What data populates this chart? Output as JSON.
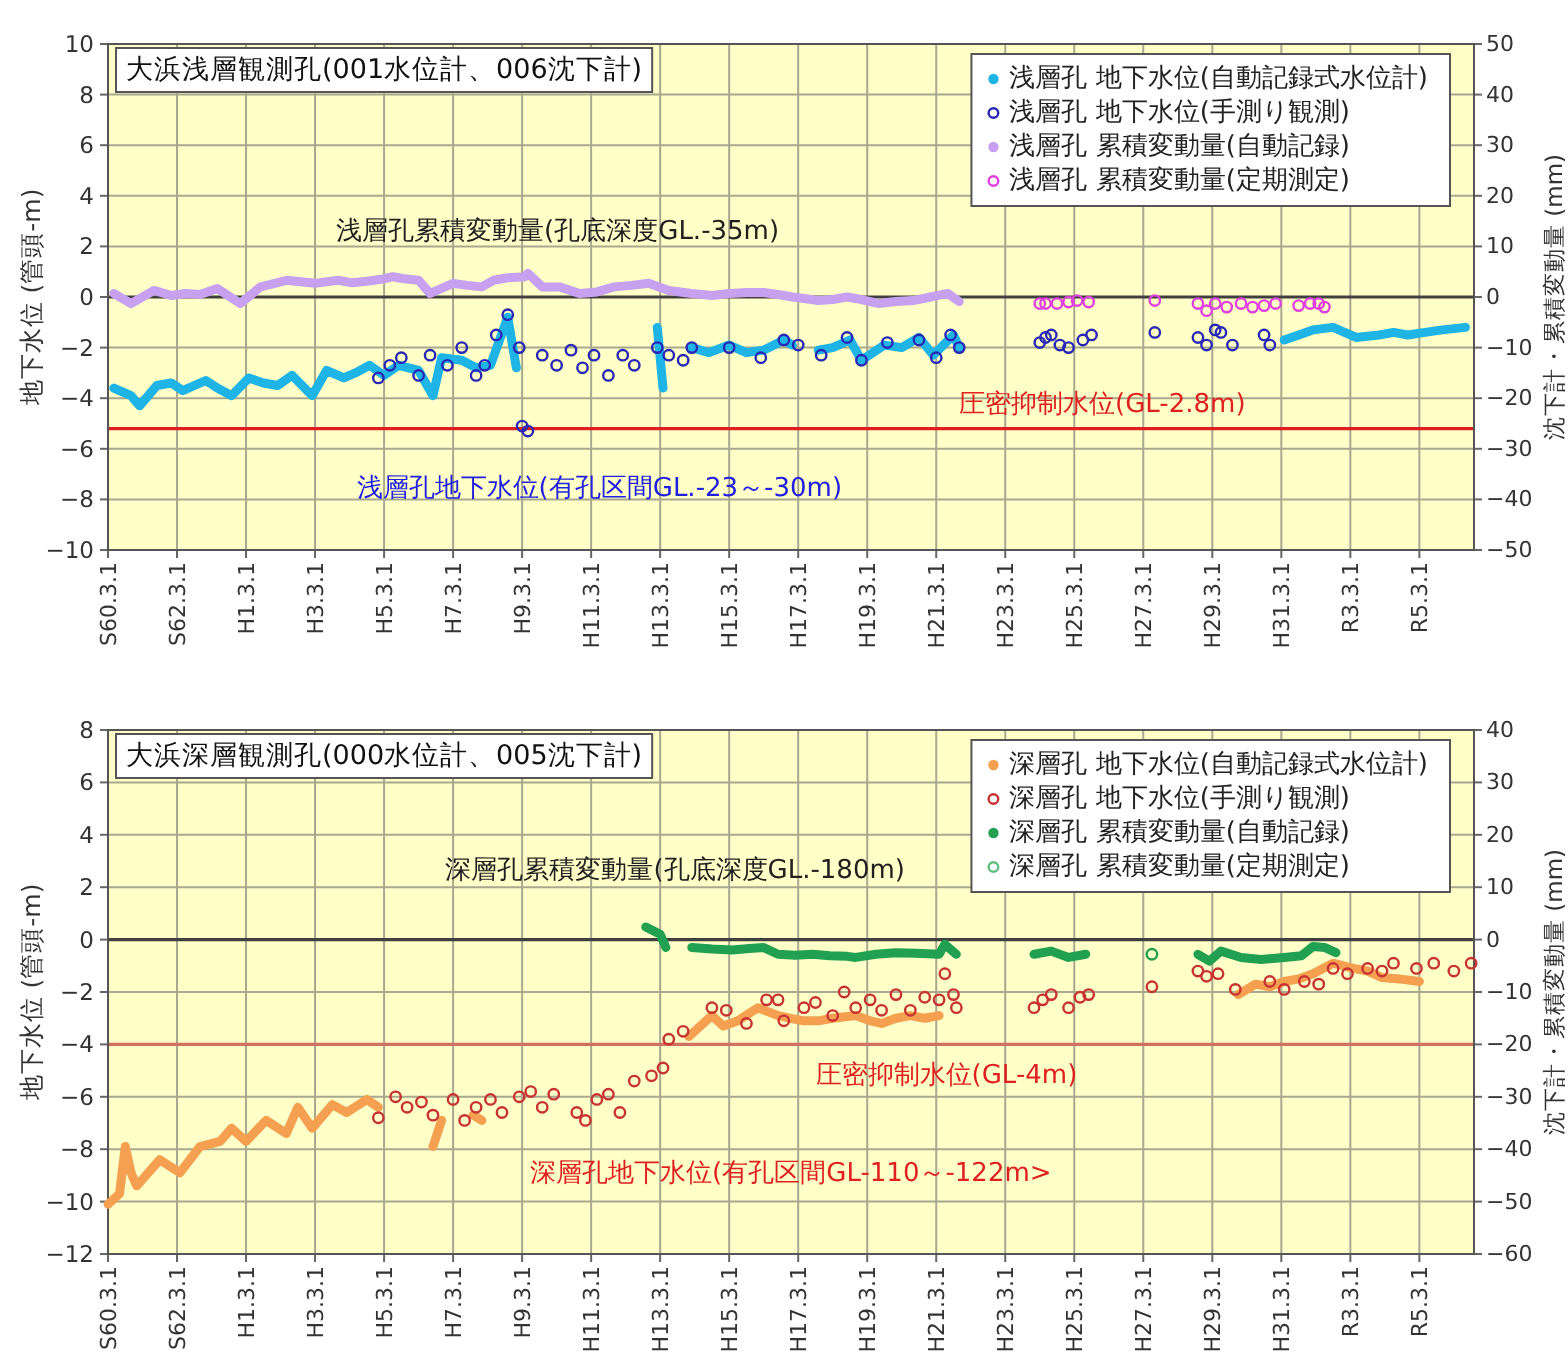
{
  "chart_data": [
    {
      "type": "scatter",
      "title": "大浜浅層観測孔(001水位計、006沈下計)",
      "ylabel": "地下水位 (管頭-m)",
      "y2label": "沈下計・累積変動量 (mm)",
      "xlim": [
        "1985-03-01",
        "2024-10-01"
      ],
      "xticks": [
        {
          "value": "1985-03-01",
          "label": "S60.3.1"
        },
        {
          "value": "1987-03-01",
          "label": "S62.3.1"
        },
        {
          "value": "1989-03-01",
          "label": "H1.3.1"
        },
        {
          "value": "1991-03-01",
          "label": "H3.3.1"
        },
        {
          "value": "1993-03-01",
          "label": "H5.3.1"
        },
        {
          "value": "1995-03-01",
          "label": "H7.3.1"
        },
        {
          "value": "1997-03-01",
          "label": "H9.3.1"
        },
        {
          "value": "1999-03-01",
          "label": "H11.3.1"
        },
        {
          "value": "2001-03-01",
          "label": "H13.3.1"
        },
        {
          "value": "2003-03-01",
          "label": "H15.3.1"
        },
        {
          "value": "2005-03-01",
          "label": "H17.3.1"
        },
        {
          "value": "2007-03-01",
          "label": "H19.3.1"
        },
        {
          "value": "2009-03-01",
          "label": "H21.3.1"
        },
        {
          "value": "2011-03-01",
          "label": "H23.3.1"
        },
        {
          "value": "2013-03-01",
          "label": "H25.3.1"
        },
        {
          "value": "2015-03-01",
          "label": "H27.3.1"
        },
        {
          "value": "2017-03-01",
          "label": "H29.3.1"
        },
        {
          "value": "2019-03-01",
          "label": "H31.3.1"
        },
        {
          "value": "2021-03-01",
          "label": "R3.3.1"
        },
        {
          "value": "2023-03-01",
          "label": "R5.3.1"
        }
      ],
      "ylim": [
        -10,
        10
      ],
      "yticks": [
        -10,
        -8,
        -6,
        -4,
        -2,
        0,
        2,
        4,
        6,
        8,
        10
      ],
      "y2lim": [
        -50,
        50
      ],
      "y2ticks": [
        -50,
        -40,
        -30,
        -20,
        -10,
        0,
        10,
        20,
        30,
        40,
        50
      ],
      "grid": true,
      "legend": "top right",
      "ref_lines": [
        {
          "axis": "y",
          "value": 0,
          "color": "#404040"
        },
        {
          "axis": "y",
          "value": -5.2,
          "color": "#e02020",
          "label": "圧密抑制水位(GL-2.8m)"
        }
      ],
      "annotations": [
        "浅層孔累積変動量(孔底深度GL.-35m)",
        "浅層孔地下水位(有孔区間GL.-23～-30m)"
      ],
      "series": [
        {
          "name": "浅層孔 地下水位(自動記録式水位計)",
          "type": "line",
          "marker": "none",
          "axis": "y",
          "color": "#1eb4e6",
          "x": [
            "1985-05",
            "1985-11",
            "1986-02",
            "1986-08",
            "1987-01",
            "1987-05",
            "1988-01",
            "1988-05",
            "1988-10",
            "1989-04",
            "1989-09",
            "1990-02",
            "1990-07",
            "1991-02",
            "1991-07",
            "1992-01",
            "1992-05",
            "1992-10",
            "1993-03",
            "1993-08",
            "1994-03",
            "1994-08",
            "1994-11",
            "1995-06",
            "1995-11",
            "1996-04",
            "1996-10",
            "1997-01",
            "2001-02",
            "2001-04",
            "2002-02",
            "2002-08",
            "2003-03",
            "2003-09",
            "2004-03",
            "2004-10",
            "2005-01",
            "2005-10",
            "2006-03",
            "2006-09",
            "2007-01",
            "2007-09",
            "2008-03",
            "2008-09",
            "2009-02",
            "2009-09",
            "2009-11",
            "2019-04",
            "2019-09",
            "2020-02",
            "2020-09",
            "2021-05",
            "2022-01",
            "2022-06",
            "2022-11",
            "2023-05",
            "2023-11",
            "2024-07"
          ],
          "values": [
            -3.6,
            -3.9,
            -4.3,
            -3.5,
            -3.4,
            -3.7,
            -3.3,
            -3.6,
            -3.9,
            -3.2,
            -3.4,
            -3.5,
            -3.1,
            -3.9,
            -2.9,
            -3.2,
            -3.0,
            -2.7,
            -3.1,
            -2.7,
            -2.9,
            -3.9,
            -2.4,
            -2.5,
            -2.8,
            -2.7,
            -0.8,
            -2.8,
            -1.2,
            -3.6,
            -2.0,
            -2.2,
            -1.9,
            -2.2,
            -2.1,
            -1.7,
            -1.9,
            -2.1,
            -2.0,
            -1.7,
            -2.5,
            -1.9,
            -2.0,
            -1.6,
            -2.3,
            -1.5,
            -2.0,
            -1.7,
            -1.5,
            -1.3,
            -1.2,
            -1.6,
            -1.5,
            -1.4,
            -1.5,
            -1.4,
            -1.3,
            -1.2
          ]
        },
        {
          "name": "浅層孔 地下水位(手測り観測)",
          "type": "scatter",
          "marker": "circle",
          "axis": "y",
          "color": "#2828b4",
          "x": [
            "1993-01",
            "1993-05",
            "1993-09",
            "1994-03",
            "1994-07",
            "1995-01",
            "1995-06",
            "1995-11",
            "1996-02",
            "1996-06",
            "1996-10",
            "1997-02",
            "1997-03",
            "1997-05",
            "1997-10",
            "1998-03",
            "1998-08",
            "1998-12",
            "1999-04",
            "1999-09",
            "2000-02",
            "2000-06",
            "2001-02",
            "2001-06",
            "2001-11",
            "2002-02",
            "2003-03",
            "2004-02",
            "2004-10",
            "2005-03",
            "2005-11",
            "2006-08",
            "2007-01",
            "2007-10",
            "2008-09",
            "2009-03",
            "2009-08",
            "2009-11",
            "2012-03",
            "2012-05",
            "2012-07",
            "2012-10",
            "2013-01",
            "2013-06",
            "2013-09",
            "2015-07",
            "2016-10",
            "2017-01",
            "2017-04",
            "2017-06",
            "2017-10",
            "2018-09",
            "2018-11"
          ],
          "values": [
            -3.2,
            -2.7,
            -2.4,
            -3.1,
            -2.3,
            -2.7,
            -2.0,
            -3.1,
            -2.7,
            -1.5,
            -0.7,
            -2.0,
            -5.1,
            -5.3,
            -2.3,
            -2.7,
            -2.1,
            -2.8,
            -2.3,
            -3.1,
            -2.3,
            -2.7,
            -2.0,
            -2.3,
            -2.5,
            -2.0,
            -2.0,
            -2.4,
            -1.7,
            -1.9,
            -2.3,
            -1.6,
            -2.5,
            -1.8,
            -1.7,
            -2.4,
            -1.5,
            -2.0,
            -1.8,
            -1.6,
            -1.5,
            -1.9,
            -2.0,
            -1.7,
            -1.5,
            -1.4,
            -1.6,
            -1.9,
            -1.3,
            -1.4,
            -1.9,
            -1.5,
            -1.9
          ]
        },
        {
          "name": "浅層孔 累積変動量(自動記録)",
          "type": "line",
          "marker": "none",
          "axis": "y2",
          "color": "#c8a0f0",
          "x": [
            "1985-05",
            "1985-11",
            "1986-07",
            "1987-01",
            "1987-06",
            "1987-11",
            "1988-05",
            "1989-01",
            "1989-08",
            "1990-01",
            "1990-05",
            "1990-10",
            "1991-03",
            "1991-11",
            "1992-04",
            "1992-09",
            "1993-02",
            "1993-06",
            "1993-10",
            "1994-03",
            "1994-07",
            "1995-03",
            "1995-08",
            "1996-01",
            "1996-05",
            "1996-10",
            "1997-04",
            "1997-05",
            "1997-10",
            "1998-04",
            "1998-11",
            "1999-05",
            "1999-11",
            "2000-05",
            "2000-11",
            "2001-06",
            "2002-02",
            "2002-09",
            "2003-03",
            "2003-09",
            "2004-03",
            "2004-08",
            "2005-01",
            "2005-05",
            "2005-10",
            "2006-03",
            "2006-08",
            "2007-01",
            "2007-07",
            "2008-01",
            "2008-07",
            "2009-01",
            "2009-07",
            "2009-11"
          ],
          "values": [
            0.7,
            -1.3,
            1.3,
            0.3,
            0.7,
            0.5,
            1.7,
            -1.3,
            2.0,
            2.7,
            3.3,
            3.0,
            2.7,
            3.3,
            2.8,
            3.1,
            3.5,
            4.0,
            3.6,
            3.3,
            0.7,
            2.7,
            2.3,
            2.0,
            3.3,
            3.8,
            4.0,
            4.7,
            2.0,
            2.0,
            0.7,
            1.0,
            2.0,
            2.3,
            2.7,
            1.3,
            0.7,
            0.3,
            0.7,
            0.9,
            0.9,
            0.5,
            0,
            -0.3,
            -0.7,
            -0.5,
            0,
            -0.5,
            -1.3,
            -0.9,
            -0.7,
            0,
            0.7,
            -0.9
          ]
        },
        {
          "name": "浅層孔 累積変動量(定期測定)",
          "type": "scatter",
          "marker": "circle",
          "axis": "y2",
          "color": "#e040e0",
          "x": [
            "2012-03",
            "2012-05",
            "2012-09",
            "2013-01",
            "2013-04",
            "2013-08",
            "2015-07",
            "2016-10",
            "2017-01",
            "2017-04",
            "2017-08",
            "2018-01",
            "2018-05",
            "2018-09",
            "2019-01",
            "2019-09",
            "2020-01",
            "2020-04",
            "2020-06"
          ],
          "values": [
            -1.3,
            -1.3,
            -1.3,
            -1.0,
            -0.7,
            -1.0,
            -0.7,
            -1.3,
            -2.7,
            -1.3,
            -2.0,
            -1.3,
            -2.0,
            -1.7,
            -1.3,
            -1.7,
            -1.3,
            -1.3,
            -2.0
          ]
        }
      ]
    },
    {
      "type": "scatter",
      "title": "大浜深層観測孔(000水位計、005沈下計)",
      "ylabel": "地下水位 (管頭-m)",
      "y2label": "沈下計・累積変動量 (mm)",
      "xlim": [
        "1985-03-01",
        "2024-10-01"
      ],
      "xticks": [
        {
          "value": "1985-03-01",
          "label": "S60.3.1"
        },
        {
          "value": "1987-03-01",
          "label": "S62.3.1"
        },
        {
          "value": "1989-03-01",
          "label": "H1.3.1"
        },
        {
          "value": "1991-03-01",
          "label": "H3.3.1"
        },
        {
          "value": "1993-03-01",
          "label": "H5.3.1"
        },
        {
          "value": "1995-03-01",
          "label": "H7.3.1"
        },
        {
          "value": "1997-03-01",
          "label": "H9.3.1"
        },
        {
          "value": "1999-03-01",
          "label": "H11.3.1"
        },
        {
          "value": "2001-03-01",
          "label": "H13.3.1"
        },
        {
          "value": "2003-03-01",
          "label": "H15.3.1"
        },
        {
          "value": "2005-03-01",
          "label": "H17.3.1"
        },
        {
          "value": "2007-03-01",
          "label": "H19.3.1"
        },
        {
          "value": "2009-03-01",
          "label": "H21.3.1"
        },
        {
          "value": "2011-03-01",
          "label": "H23.3.1"
        },
        {
          "value": "2013-03-01",
          "label": "H25.3.1"
        },
        {
          "value": "2015-03-01",
          "label": "H27.3.1"
        },
        {
          "value": "2017-03-01",
          "label": "H29.3.1"
        },
        {
          "value": "2019-03-01",
          "label": "H31.3.1"
        },
        {
          "value": "2021-03-01",
          "label": "R3.3.1"
        },
        {
          "value": "2023-03-01",
          "label": "R5.3.1"
        }
      ],
      "ylim": [
        -12,
        8
      ],
      "yticks": [
        -12,
        -10,
        -8,
        -6,
        -4,
        -2,
        0,
        2,
        4,
        6,
        8
      ],
      "y2lim": [
        -60,
        40
      ],
      "y2ticks": [
        -60,
        -50,
        -40,
        -30,
        -20,
        -10,
        0,
        10,
        20,
        30,
        40
      ],
      "grid": true,
      "legend": "top right",
      "ref_lines": [
        {
          "axis": "y",
          "value": 0,
          "color": "#404040"
        },
        {
          "axis": "y",
          "value": -4,
          "color": "#d07060",
          "label": "圧密抑制水位(GL-4m)"
        }
      ],
      "annotations": [
        "深層孔累積変動量(孔底深度GL.-180m)",
        "深層孔地下水位(有孔区間GL-110～-122m>"
      ],
      "series": [
        {
          "name": "深層孔 地下水位(自動記録式水位計)",
          "type": "line",
          "marker": "none",
          "axis": "y",
          "color": "#f4a050",
          "x": [
            "1985-03",
            "1985-07",
            "1985-09",
            "1985-11",
            "1986-01",
            "1986-09",
            "1987-04",
            "1987-11",
            "1988-06",
            "1988-10",
            "1989-03",
            "1989-10",
            "1990-05",
            "1990-09",
            "1991-02",
            "1991-09",
            "1992-02",
            "1992-09",
            "1993-01",
            "1994-08",
            "1994-11",
            "1995-10",
            "1996-01",
            "2002-01",
            "2002-09",
            "2003-01",
            "2003-06",
            "2004-01",
            "2004-08",
            "2004-12",
            "2005-05",
            "2005-10",
            "2006-03",
            "2006-11",
            "2007-04",
            "2007-08",
            "2008-01",
            "2008-06",
            "2008-11",
            "2009-04",
            "2017-12",
            "2018-06",
            "2018-11",
            "2019-04",
            "2019-09",
            "2020-02",
            "2020-09",
            "2021-04",
            "2021-09",
            "2022-02",
            "2022-08",
            "2023-03"
          ],
          "values": [
            -10.1,
            -9.7,
            -7.9,
            -8.9,
            -9.4,
            -8.4,
            -8.9,
            -7.9,
            -7.7,
            -7.2,
            -7.7,
            -6.9,
            -7.4,
            -6.4,
            -7.2,
            -6.3,
            -6.6,
            -6.1,
            -6.4,
            -7.9,
            -6.9,
            -6.7,
            -6.9,
            -3.7,
            -2.9,
            -3.3,
            -3.1,
            -2.6,
            -2.9,
            -3.0,
            -3.1,
            -3.1,
            -3.0,
            -2.9,
            -3.1,
            -3.2,
            -3.0,
            -2.9,
            -3.0,
            -2.9,
            -2.1,
            -1.7,
            -1.8,
            -1.6,
            -1.5,
            -1.3,
            -0.9,
            -1.1,
            -1.2,
            -1.45,
            -1.5,
            -1.6
          ]
        },
        {
          "name": "深層孔 地下水位(手測り観測)",
          "type": "scatter",
          "marker": "circle",
          "axis": "y",
          "color": "#c83232",
          "x": [
            "1993-01",
            "1993-07",
            "1993-11",
            "1994-04",
            "1994-08",
            "1995-03",
            "1995-07",
            "1995-11",
            "1996-04",
            "1996-08",
            "1997-02",
            "1997-06",
            "1997-10",
            "1998-02",
            "1998-10",
            "1999-01",
            "1999-05",
            "1999-09",
            "2000-01",
            "2000-06",
            "2000-12",
            "2001-04",
            "2001-06",
            "2001-11",
            "2002-09",
            "2003-02",
            "2003-09",
            "2004-04",
            "2004-08",
            "2004-10",
            "2005-05",
            "2005-09",
            "2006-03",
            "2006-07",
            "2006-11",
            "2007-04",
            "2007-08",
            "2008-01",
            "2008-06",
            "2008-11",
            "2009-04",
            "2009-06",
            "2009-09",
            "2009-10",
            "2012-01",
            "2012-04",
            "2012-07",
            "2013-01",
            "2013-05",
            "2013-08",
            "2015-06",
            "2016-10",
            "2017-01",
            "2017-05",
            "2017-11",
            "2018-11",
            "2019-04",
            "2019-11",
            "2020-04",
            "2020-09",
            "2021-02",
            "2021-09",
            "2022-02",
            "2022-06",
            "2023-02",
            "2023-08",
            "2024-03",
            "2024-09"
          ],
          "values": [
            -6.8,
            -6.0,
            -6.4,
            -6.2,
            -6.7,
            -6.1,
            -6.9,
            -6.4,
            -6.1,
            -6.6,
            -6.0,
            -5.8,
            -6.4,
            -5.9,
            -6.6,
            -6.9,
            -6.1,
            -5.9,
            -6.6,
            -5.4,
            -5.2,
            -4.9,
            -3.8,
            -3.5,
            -2.6,
            -2.7,
            -3.2,
            -2.3,
            -2.3,
            -3.1,
            -2.6,
            -2.4,
            -2.9,
            -2.0,
            -2.6,
            -2.3,
            -2.7,
            -2.1,
            -2.7,
            -2.2,
            -2.3,
            -1.3,
            -2.1,
            -2.6,
            -2.6,
            -2.3,
            -2.1,
            -2.6,
            -2.2,
            -2.1,
            -1.8,
            -1.2,
            -1.4,
            -1.3,
            -1.9,
            -1.6,
            -1.9,
            -1.6,
            -1.7,
            -1.1,
            -1.3,
            -1.1,
            -1.2,
            -0.9,
            -1.1,
            -0.9,
            -1.2,
            -0.9
          ]
        },
        {
          "name": "深層孔 累積変動量(自動記録)",
          "type": "line",
          "marker": "none",
          "axis": "y2",
          "color": "#20a050",
          "x": [
            "2000-10",
            "2001-03",
            "2001-05",
            "2002-02",
            "2002-09",
            "2003-04",
            "2003-10",
            "2004-03",
            "2004-08",
            "2005-02",
            "2005-08",
            "2006-02",
            "2006-08",
            "2006-11",
            "2007-06",
            "2008-01",
            "2008-08",
            "2009-04",
            "2009-06",
            "2009-10",
            "2012-01",
            "2012-07",
            "2013-01",
            "2013-07",
            "2016-10",
            "2017-02",
            "2017-06",
            "2018-01",
            "2018-08",
            "2019-04",
            "2019-10",
            "2020-02",
            "2020-06",
            "2020-10"
          ],
          "values": [
            2.4,
            1.0,
            -1.5,
            -1.5,
            -1.8,
            -2.0,
            -1.7,
            -1.5,
            -2.8,
            -3.0,
            -2.8,
            -3.1,
            -3.2,
            -3.4,
            -2.8,
            -2.5,
            -2.6,
            -2.8,
            -0.9,
            -2.8,
            -2.8,
            -2.2,
            -3.4,
            -2.8,
            -2.8,
            -4.1,
            -2.2,
            -3.4,
            -3.8,
            -3.4,
            -3.1,
            -1.3,
            -1.5,
            -2.5
          ]
        },
        {
          "name": "深層孔 累積変動量(定期測定)",
          "type": "scatter",
          "marker": "circle",
          "axis": "y2",
          "color": "#60c080"
        },
        {
          "type": "scatter",
          "marker": "circle",
          "axis": "y2",
          "color": "#20a050",
          "x": [
            "2015-06"
          ],
          "values": [
            -2.8
          ]
        }
      ]
    }
  ]
}
